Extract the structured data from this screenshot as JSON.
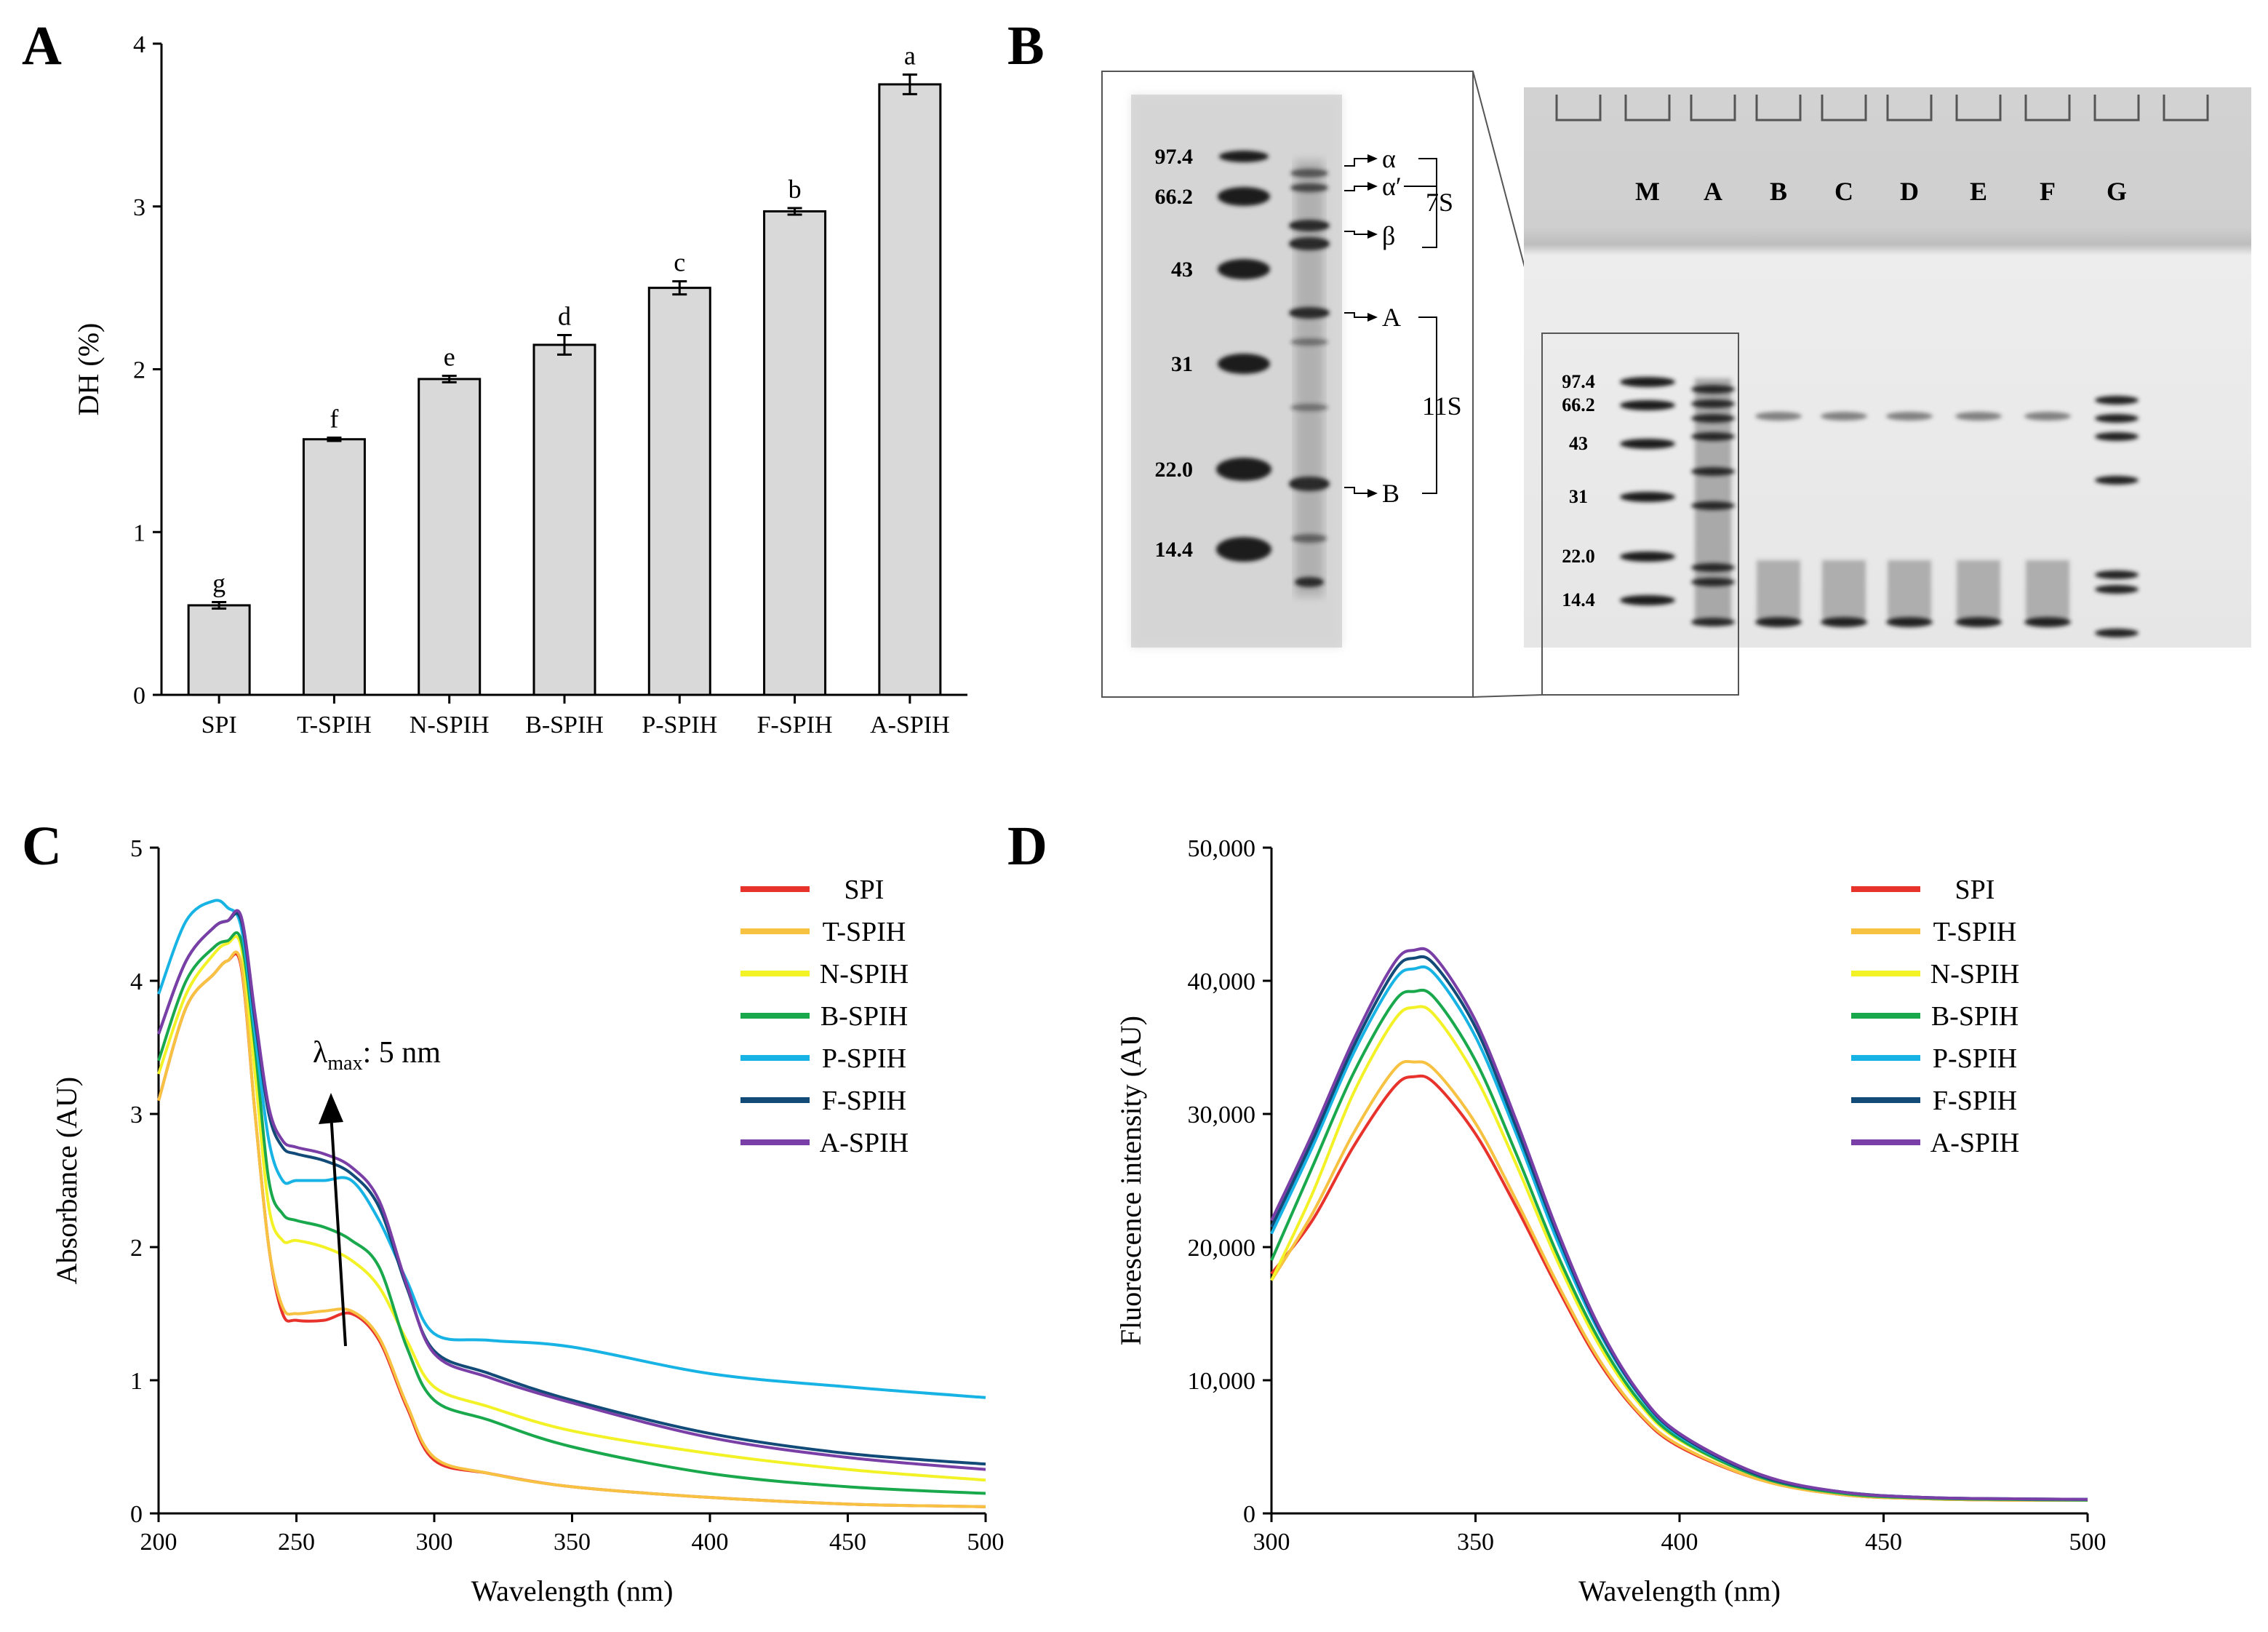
{
  "panels": {
    "A": {
      "letter": "A",
      "chart_data": {
        "type": "bar",
        "categories": [
          "SPI",
          "T-SPIH",
          "N-SPIH",
          "B-SPIH",
          "P-SPIH",
          "F-SPIH",
          "A-SPIH"
        ],
        "values": [
          0.55,
          1.57,
          1.94,
          2.15,
          2.5,
          2.97,
          3.75
        ],
        "errors": [
          0.02,
          0.01,
          0.02,
          0.06,
          0.04,
          0.02,
          0.06
        ],
        "significance_letters": [
          "g",
          "f",
          "e",
          "d",
          "c",
          "b",
          "a"
        ],
        "ylabel": "DH (%)",
        "xlabel": "",
        "ylim": [
          0,
          4
        ],
        "yticks": [
          "0",
          "1",
          "2",
          "3",
          "4"
        ],
        "bar_color": "#d9d9d9",
        "grid": false
      }
    },
    "B": {
      "letter": "B",
      "gel": {
        "lanes": [
          "M",
          "A",
          "B",
          "C",
          "D",
          "E",
          "F",
          "G"
        ],
        "markers": [
          "97.4",
          "66.2",
          "43",
          "31",
          "22.0",
          "14.4"
        ],
        "subunit_labels": [
          "α",
          "α′",
          "β",
          "A",
          "B"
        ],
        "group_labels": [
          "7S",
          "11S"
        ]
      }
    },
    "C": {
      "letter": "C",
      "annotation": {
        "symbol": "λ",
        "subscript": "max",
        "suffix": ": 5 nm"
      },
      "chart_data": {
        "type": "line",
        "xlabel": "Wavelength (nm)",
        "ylabel": "Absorbance (AU)",
        "xlim": [
          200,
          500
        ],
        "ylim": [
          0,
          5
        ],
        "xticks": [
          "200",
          "250",
          "300",
          "350",
          "400",
          "450",
          "500"
        ],
        "yticks": [
          "0",
          "1",
          "2",
          "3",
          "4",
          "5"
        ],
        "legend_position": "top-right",
        "x": [
          200,
          210,
          220,
          225,
          230,
          235,
          240,
          245,
          250,
          260,
          270,
          280,
          290,
          300,
          320,
          350,
          400,
          450,
          500
        ],
        "series": [
          {
            "name": "SPI",
            "color": "#e8322c",
            "values": [
              3.1,
              3.8,
              4.05,
              4.15,
              4.1,
              3.0,
              2.0,
              1.5,
              1.45,
              1.45,
              1.5,
              1.3,
              0.8,
              0.4,
              0.3,
              0.2,
              0.12,
              0.07,
              0.05
            ]
          },
          {
            "name": "T-SPIH",
            "color": "#f7c242",
            "values": [
              3.1,
              3.8,
              4.05,
              4.15,
              4.12,
              3.0,
              2.0,
              1.55,
              1.5,
              1.52,
              1.52,
              1.32,
              0.82,
              0.42,
              0.3,
              0.2,
              0.12,
              0.07,
              0.05
            ]
          },
          {
            "name": "N-SPIH",
            "color": "#f2f227",
            "values": [
              3.3,
              3.9,
              4.2,
              4.28,
              4.25,
              3.3,
              2.3,
              2.05,
              2.05,
              2.0,
              1.9,
              1.7,
              1.3,
              0.95,
              0.8,
              0.62,
              0.45,
              0.33,
              0.25
            ]
          },
          {
            "name": "B-SPIH",
            "color": "#1aa84d",
            "values": [
              3.4,
              4.0,
              4.25,
              4.3,
              4.3,
              3.5,
              2.5,
              2.25,
              2.2,
              2.15,
              2.05,
              1.85,
              1.25,
              0.85,
              0.7,
              0.5,
              0.3,
              0.2,
              0.15
            ]
          },
          {
            "name": "P-SPIH",
            "color": "#17b3e4",
            "values": [
              3.9,
              4.45,
              4.6,
              4.55,
              4.4,
              3.6,
              2.8,
              2.5,
              2.5,
              2.5,
              2.5,
              2.2,
              1.75,
              1.35,
              1.3,
              1.25,
              1.05,
              0.95,
              0.87
            ]
          },
          {
            "name": "F-SPIH",
            "color": "#124a78",
            "values": [
              3.6,
              4.15,
              4.4,
              4.45,
              4.45,
              3.7,
              3.0,
              2.75,
              2.7,
              2.65,
              2.55,
              2.3,
              1.7,
              1.22,
              1.05,
              0.85,
              0.6,
              0.45,
              0.37
            ]
          },
          {
            "name": "A-SPIH",
            "color": "#7a3fa6",
            "values": [
              3.6,
              4.15,
              4.4,
              4.45,
              4.48,
              3.75,
              3.05,
              2.8,
              2.75,
              2.7,
              2.6,
              2.35,
              1.72,
              1.2,
              1.02,
              0.83,
              0.57,
              0.42,
              0.33
            ]
          }
        ]
      }
    },
    "D": {
      "letter": "D",
      "chart_data": {
        "type": "line",
        "xlabel": "Wavelength (nm)",
        "ylabel": "Fluorescence intensity (AU)",
        "xlim": [
          300,
          500
        ],
        "ylim": [
          0,
          50000
        ],
        "xticks": [
          "300",
          "350",
          "400",
          "450",
          "500"
        ],
        "yticks": [
          "0",
          "10,000",
          "20,000",
          "30,000",
          "40,000",
          "50,000"
        ],
        "legend_position": "top-right",
        "x": [
          300,
          310,
          320,
          330,
          335,
          340,
          350,
          360,
          370,
          380,
          390,
          400,
          420,
          440,
          460,
          480,
          500
        ],
        "series": [
          {
            "name": "SPI",
            "color": "#e8322c",
            "values": [
              18000,
              22000,
              27500,
              32000,
              32800,
              32300,
              28500,
              23000,
              17000,
              11500,
              7500,
              5000,
              2500,
              1400,
              1100,
              1000,
              1000
            ]
          },
          {
            "name": "T-SPIH",
            "color": "#f7c242",
            "values": [
              17500,
              22500,
              28500,
              33300,
              33900,
              33300,
              29300,
              23500,
              17300,
              11700,
              7600,
              5100,
              2500,
              1400,
              1100,
              1000,
              1000
            ]
          },
          {
            "name": "N-SPIH",
            "color": "#f2f227",
            "values": [
              17500,
              24000,
              31500,
              37000,
              38000,
              37400,
              32800,
              26200,
              19000,
              12800,
              8300,
              5500,
              2700,
              1500,
              1150,
              1050,
              1000
            ]
          },
          {
            "name": "B-SPIH",
            "color": "#1aa84d",
            "values": [
              19000,
              26000,
              33000,
              38400,
              39200,
              38700,
              34000,
              27000,
              19500,
              13200,
              8500,
              5600,
              2700,
              1500,
              1150,
              1050,
              1000
            ]
          },
          {
            "name": "P-SPIH",
            "color": "#17b3e4",
            "values": [
              21000,
              27500,
              34500,
              40000,
              40900,
              40500,
              35800,
              28500,
              20500,
              13800,
              8900,
              5800,
              2800,
              1600,
              1200,
              1100,
              1050
            ]
          },
          {
            "name": "F-SPIH",
            "color": "#124a78",
            "values": [
              21500,
              28000,
              35000,
              40700,
              41700,
              41200,
              36500,
              29000,
              21000,
              14000,
              9000,
              5900,
              2800,
              1600,
              1200,
              1100,
              1050
            ]
          },
          {
            "name": "A-SPIH",
            "color": "#7a3fa6",
            "values": [
              22000,
              28500,
              35500,
              41300,
              42300,
              41800,
              37000,
              29500,
              21300,
              14200,
              9100,
              6000,
              2900,
              1600,
              1200,
              1100,
              1050
            ]
          }
        ]
      }
    }
  }
}
